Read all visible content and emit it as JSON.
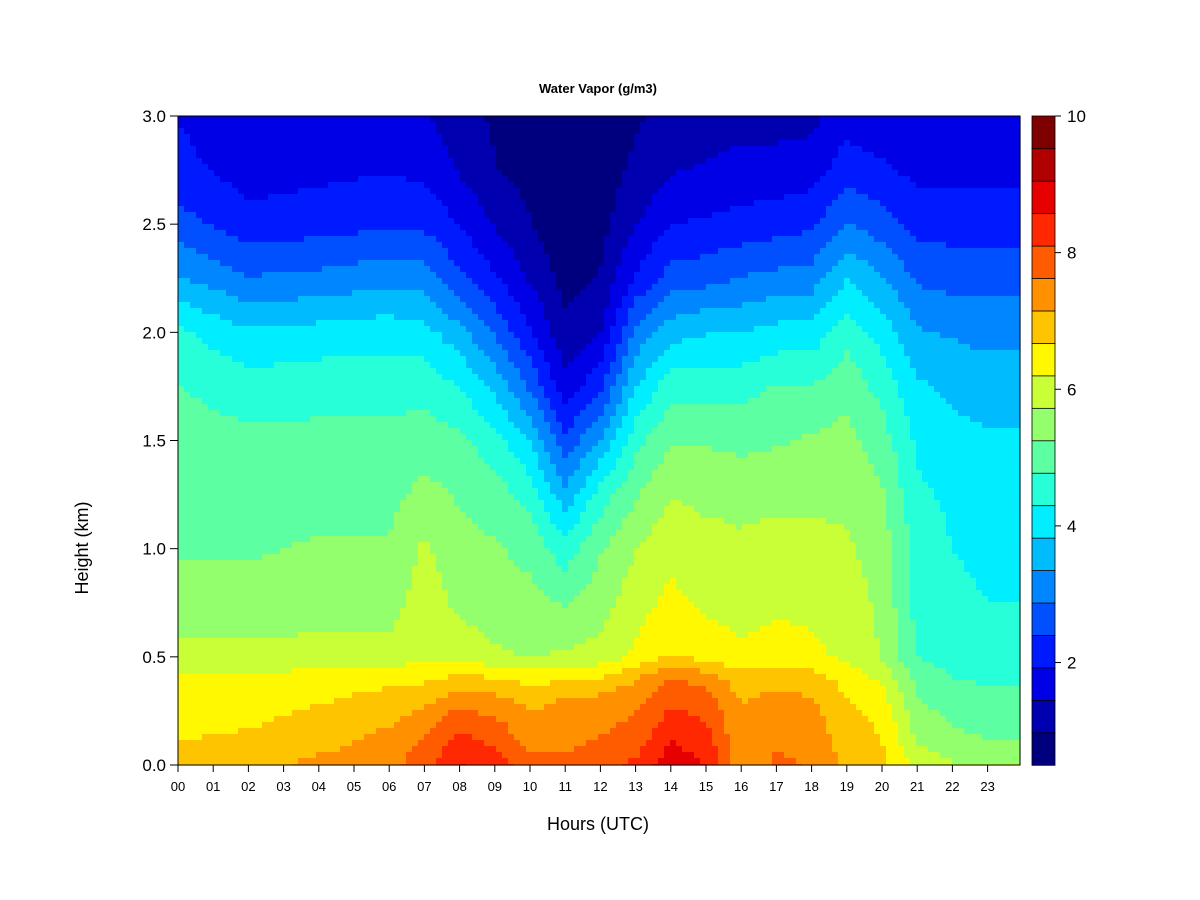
{
  "chart_data": {
    "type": "heatmap",
    "title": "Water Vapor (g/m3)",
    "xlabel": "Hours (UTC)",
    "ylabel": "Height (km)",
    "xlim": [
      0,
      24
    ],
    "ylim": [
      0,
      3
    ],
    "x_ticks": [
      "00",
      "01",
      "02",
      "03",
      "04",
      "05",
      "06",
      "07",
      "08",
      "09",
      "10",
      "11",
      "12",
      "13",
      "14",
      "15",
      "16",
      "17",
      "18",
      "19",
      "20",
      "21",
      "22",
      "23"
    ],
    "y_ticks": [
      "0.0",
      "0.5",
      "1.0",
      "1.5",
      "2.0",
      "2.5",
      "3.0"
    ],
    "colorbar": {
      "min": 0.5,
      "max": 10,
      "levels": 19,
      "tick_labels": [
        "2",
        "4",
        "6",
        "8",
        "10"
      ],
      "colors": [
        "#00007F",
        "#0000B0",
        "#0000E6",
        "#001AFF",
        "#0050FF",
        "#0086FF",
        "#00BCFF",
        "#00EEFF",
        "#26FFD8",
        "#5CFFA2",
        "#93FF6C",
        "#C9FF36",
        "#FFF800",
        "#FFC400",
        "#FF9000",
        "#FF5C00",
        "#FF2800",
        "#E60000",
        "#B00000",
        "#7F0000"
      ]
    },
    "heights_km": [
      0.0,
      0.1,
      0.2,
      0.3,
      0.4,
      0.5,
      0.75,
      1.0,
      1.25,
      1.5,
      1.75,
      2.0,
      2.25,
      2.5,
      2.75,
      3.0
    ],
    "series": [
      {
        "hour": 0,
        "values": [
          6.8,
          6.7,
          6.5,
          6.4,
          6.3,
          5.9,
          5.4,
          5.2,
          5.1,
          5.0,
          4.8,
          4.4,
          3.4,
          2.6,
          2.1,
          1.9
        ]
      },
      {
        "hour": 2,
        "values": [
          6.9,
          6.8,
          6.6,
          6.4,
          6.3,
          5.9,
          5.4,
          5.2,
          5.0,
          4.9,
          4.5,
          3.9,
          2.9,
          2.1,
          1.7,
          1.5
        ]
      },
      {
        "hour": 4,
        "values": [
          7.3,
          7.0,
          6.9,
          6.6,
          6.4,
          5.9,
          5.5,
          5.3,
          5.1,
          4.9,
          4.6,
          4.0,
          3.0,
          2.2,
          1.8,
          1.5
        ]
      },
      {
        "hour": 6,
        "values": [
          7.5,
          7.3,
          7.1,
          6.9,
          6.5,
          5.9,
          5.5,
          5.3,
          5.1,
          4.9,
          4.6,
          4.1,
          3.2,
          2.3,
          1.9,
          1.6
        ]
      },
      {
        "hour": 7,
        "values": [
          7.9,
          7.7,
          7.4,
          7.0,
          6.6,
          6.1,
          6.0,
          5.8,
          5.4,
          5.0,
          4.6,
          4.0,
          3.1,
          2.3,
          1.8,
          1.5
        ]
      },
      {
        "hour": 8,
        "values": [
          8.6,
          8.3,
          8.0,
          7.4,
          6.8,
          6.0,
          5.6,
          5.4,
          5.2,
          4.9,
          4.3,
          3.5,
          2.5,
          1.9,
          1.4,
          1.2
        ]
      },
      {
        "hour": 9,
        "values": [
          8.4,
          8.0,
          7.7,
          7.3,
          6.7,
          5.8,
          5.5,
          5.3,
          5.0,
          4.5,
          3.7,
          2.8,
          2.0,
          1.4,
          1.0,
          0.9
        ]
      },
      {
        "hour": 10,
        "values": [
          7.9,
          7.5,
          7.3,
          7.0,
          6.5,
          5.7,
          5.4,
          5.1,
          4.6,
          3.8,
          2.8,
          2.0,
          1.4,
          1.0,
          0.8,
          0.7
        ]
      },
      {
        "hour": 11,
        "values": [
          7.8,
          7.5,
          7.3,
          7.2,
          6.6,
          5.8,
          5.2,
          4.5,
          3.5,
          2.5,
          1.6,
          1.1,
          0.8,
          0.6,
          0.6,
          0.6
        ]
      },
      {
        "hour": 12,
        "values": [
          7.9,
          7.7,
          7.5,
          7.3,
          6.7,
          5.9,
          5.5,
          5.2,
          4.5,
          3.4,
          2.3,
          1.4,
          1.0,
          0.8,
          0.7,
          0.6
        ]
      },
      {
        "hour": 13,
        "values": [
          8.2,
          7.9,
          7.7,
          7.5,
          7.1,
          6.3,
          6.0,
          5.7,
          5.2,
          4.6,
          3.8,
          3.0,
          2.0,
          1.4,
          1.1,
          0.9
        ]
      },
      {
        "hour": 14,
        "values": [
          8.9,
          8.6,
          8.3,
          8.0,
          7.7,
          6.7,
          6.3,
          6.1,
          5.7,
          5.2,
          4.6,
          3.6,
          2.6,
          1.9,
          1.4,
          1.1
        ]
      },
      {
        "hour": 15,
        "values": [
          8.6,
          8.3,
          8.1,
          7.9,
          7.4,
          6.5,
          6.1,
          5.9,
          5.6,
          5.2,
          4.6,
          3.8,
          2.7,
          2.0,
          1.5,
          1.2
        ]
      },
      {
        "hour": 16,
        "values": [
          7.3,
          7.3,
          7.2,
          7.1,
          6.9,
          6.3,
          6.0,
          5.8,
          5.6,
          5.1,
          4.6,
          3.8,
          2.9,
          2.1,
          1.6,
          1.3
        ]
      },
      {
        "hour": 17,
        "values": [
          7.7,
          7.6,
          7.4,
          7.3,
          7.0,
          6.4,
          6.1,
          5.9,
          5.6,
          5.2,
          4.8,
          4.0,
          3.0,
          2.2,
          1.6,
          1.3
        ]
      },
      {
        "hour": 18,
        "values": [
          7.6,
          7.5,
          7.4,
          7.2,
          6.9,
          6.3,
          6.1,
          5.9,
          5.6,
          5.3,
          4.8,
          4.0,
          3.1,
          2.3,
          1.7,
          1.3
        ]
      },
      {
        "hour": 19,
        "values": [
          7.0,
          6.9,
          6.8,
          6.7,
          6.5,
          6.1,
          6.0,
          5.8,
          5.6,
          5.4,
          5.1,
          4.6,
          3.8,
          2.9,
          2.2,
          1.7
        ]
      },
      {
        "hour": 20,
        "values": [
          6.8,
          6.7,
          6.6,
          6.4,
          6.1,
          5.7,
          5.6,
          5.5,
          5.3,
          5.0,
          4.6,
          4.1,
          3.4,
          2.6,
          2.0,
          1.6
        ]
      },
      {
        "hour": 21,
        "values": [
          6.1,
          5.7,
          5.5,
          5.3,
          5.1,
          4.8,
          4.6,
          4.6,
          4.4,
          4.2,
          3.9,
          3.4,
          2.8,
          2.2,
          1.8,
          1.5
        ]
      },
      {
        "hour": 22,
        "values": [
          5.8,
          5.4,
          5.2,
          5.0,
          4.8,
          4.5,
          4.4,
          4.3,
          4.2,
          4.0,
          3.7,
          3.3,
          2.7,
          2.2,
          1.8,
          1.5
        ]
      },
      {
        "hour": 23,
        "values": [
          5.8,
          5.3,
          5.1,
          4.9,
          4.7,
          4.4,
          4.3,
          4.2,
          4.1,
          3.9,
          3.6,
          3.2,
          2.7,
          2.2,
          1.8,
          1.5
        ]
      },
      {
        "hour": 24,
        "values": [
          5.8,
          5.3,
          5.1,
          4.9,
          4.7,
          4.4,
          4.3,
          4.2,
          4.1,
          3.9,
          3.6,
          3.2,
          2.7,
          2.2,
          1.8,
          1.5
        ]
      }
    ]
  }
}
